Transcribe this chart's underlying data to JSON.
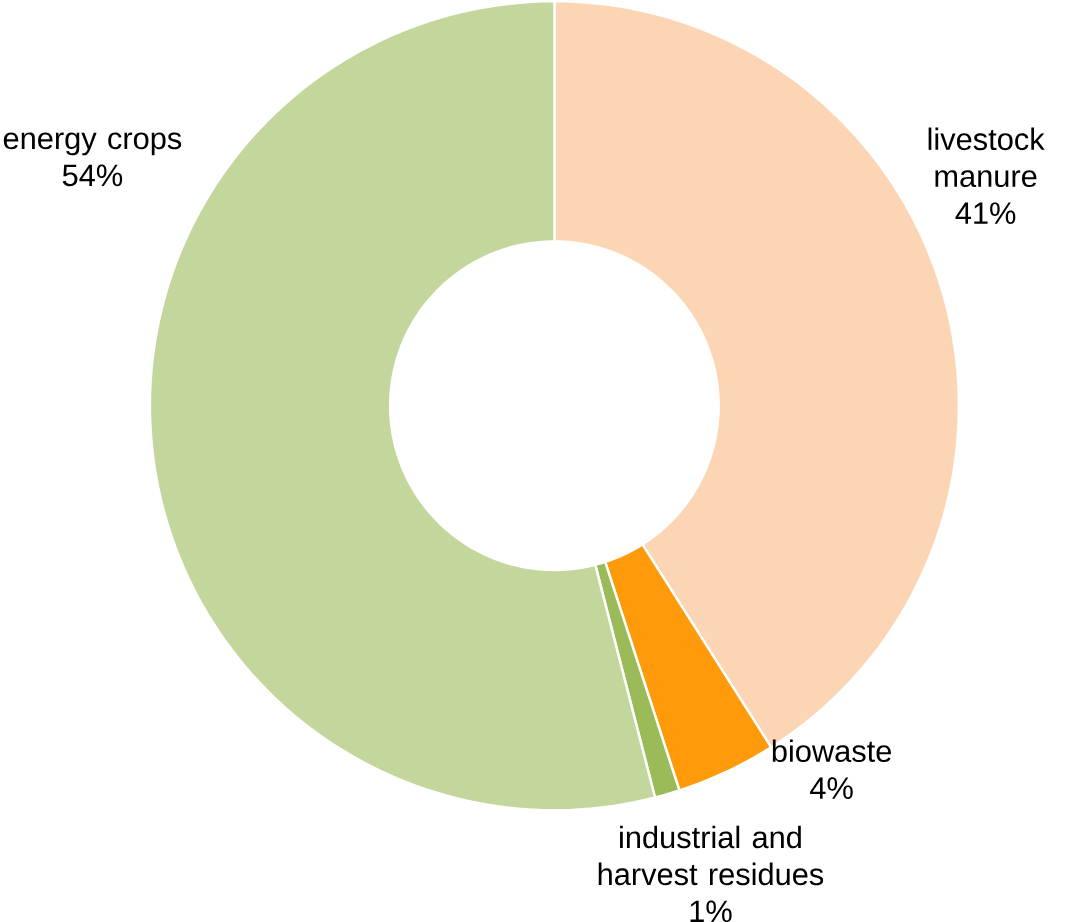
{
  "chart_data": {
    "type": "donut",
    "categories": [
      "livestock manure",
      "biowaste",
      "industrial and harvest residues",
      "energy crops"
    ],
    "values": [
      41,
      4,
      1,
      54
    ],
    "colors": [
      "#fcd5b5",
      "#ff9a0a",
      "#9bbb59",
      "#c3d69b"
    ],
    "value_labels": [
      "41%",
      "4%",
      "1%",
      "54%"
    ]
  }
}
